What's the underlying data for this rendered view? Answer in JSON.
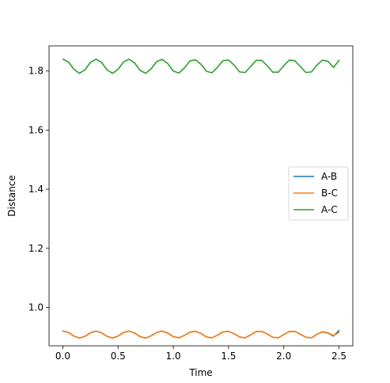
{
  "chart_data": {
    "type": "line",
    "title": "",
    "xlabel": "Time",
    "ylabel": "Distance",
    "xlim": [
      -0.125,
      2.625
    ],
    "ylim": [
      0.87,
      1.885
    ],
    "xticks": [
      0.0,
      0.5,
      1.0,
      1.5,
      2.0,
      2.5
    ],
    "xtick_labels": [
      "0.0",
      "0.5",
      "1.0",
      "1.5",
      "2.0",
      "2.5"
    ],
    "yticks": [
      1.0,
      1.2,
      1.4,
      1.6,
      1.8
    ],
    "ytick_labels": [
      "1.0",
      "1.2",
      "1.4",
      "1.6",
      "1.8"
    ],
    "grid": false,
    "legend_position": "center-right",
    "series": [
      {
        "name": "A-B",
        "color": "#1f77b4",
        "x": [
          0.0,
          0.05,
          0.1,
          0.15,
          0.2,
          0.25,
          0.3,
          0.35,
          0.4,
          0.45,
          0.5,
          0.55,
          0.6,
          0.65,
          0.7,
          0.75,
          0.8,
          0.85,
          0.9,
          0.95,
          1.0,
          1.05,
          1.1,
          1.15,
          1.2,
          1.25,
          1.3,
          1.35,
          1.4,
          1.45,
          1.5,
          1.55,
          1.6,
          1.65,
          1.7,
          1.75,
          1.8,
          1.85,
          1.9,
          1.95,
          2.0,
          2.05,
          2.1,
          2.15,
          2.2,
          2.25,
          2.3,
          2.35,
          2.4,
          2.45,
          2.5
        ],
        "y": [
          0.92,
          0.915,
          0.903,
          0.896,
          0.902,
          0.914,
          0.92,
          0.914,
          0.902,
          0.896,
          0.903,
          0.915,
          0.92,
          0.913,
          0.901,
          0.896,
          0.904,
          0.915,
          0.92,
          0.913,
          0.901,
          0.897,
          0.905,
          0.916,
          0.919,
          0.912,
          0.9,
          0.897,
          0.906,
          0.917,
          0.919,
          0.911,
          0.9,
          0.897,
          0.907,
          0.918,
          0.919,
          0.91,
          0.899,
          0.897,
          0.908,
          0.918,
          0.919,
          0.909,
          0.899,
          0.897,
          0.909,
          0.917,
          0.913,
          0.903,
          0.922
        ]
      },
      {
        "name": "B-C",
        "color": "#ff7f0e",
        "x": [
          0.0,
          0.05,
          0.1,
          0.15,
          0.2,
          0.25,
          0.3,
          0.35,
          0.4,
          0.45,
          0.5,
          0.55,
          0.6,
          0.65,
          0.7,
          0.75,
          0.8,
          0.85,
          0.9,
          0.95,
          1.0,
          1.05,
          1.1,
          1.15,
          1.2,
          1.25,
          1.3,
          1.35,
          1.4,
          1.45,
          1.5,
          1.55,
          1.6,
          1.65,
          1.7,
          1.75,
          1.8,
          1.85,
          1.9,
          1.95,
          2.0,
          2.05,
          2.1,
          2.15,
          2.2,
          2.25,
          2.3,
          2.35,
          2.4,
          2.45,
          2.5
        ],
        "y": [
          0.92,
          0.915,
          0.903,
          0.896,
          0.902,
          0.914,
          0.92,
          0.914,
          0.902,
          0.896,
          0.903,
          0.915,
          0.92,
          0.913,
          0.901,
          0.896,
          0.904,
          0.915,
          0.92,
          0.913,
          0.901,
          0.897,
          0.905,
          0.916,
          0.919,
          0.912,
          0.9,
          0.897,
          0.906,
          0.917,
          0.919,
          0.911,
          0.9,
          0.897,
          0.907,
          0.918,
          0.919,
          0.91,
          0.899,
          0.897,
          0.908,
          0.918,
          0.919,
          0.909,
          0.899,
          0.897,
          0.909,
          0.918,
          0.914,
          0.905,
          0.915
        ]
      },
      {
        "name": "A-C",
        "color": "#2ca02c",
        "x": [
          0.0,
          0.05,
          0.1,
          0.15,
          0.2,
          0.25,
          0.3,
          0.35,
          0.4,
          0.45,
          0.5,
          0.55,
          0.6,
          0.65,
          0.7,
          0.75,
          0.8,
          0.85,
          0.9,
          0.95,
          1.0,
          1.05,
          1.1,
          1.15,
          1.2,
          1.25,
          1.3,
          1.35,
          1.4,
          1.45,
          1.5,
          1.55,
          1.6,
          1.65,
          1.7,
          1.75,
          1.8,
          1.85,
          1.9,
          1.95,
          2.0,
          2.05,
          2.1,
          2.15,
          2.2,
          2.25,
          2.3,
          2.35,
          2.4,
          2.45,
          2.5
        ],
        "y": [
          1.84,
          1.831,
          1.806,
          1.792,
          1.804,
          1.829,
          1.84,
          1.829,
          1.804,
          1.792,
          1.806,
          1.831,
          1.84,
          1.827,
          1.802,
          1.792,
          1.808,
          1.832,
          1.839,
          1.825,
          1.8,
          1.793,
          1.81,
          1.834,
          1.838,
          1.823,
          1.799,
          1.794,
          1.813,
          1.835,
          1.837,
          1.82,
          1.797,
          1.795,
          1.815,
          1.836,
          1.836,
          1.818,
          1.796,
          1.796,
          1.818,
          1.837,
          1.835,
          1.815,
          1.795,
          1.797,
          1.82,
          1.837,
          1.833,
          1.812,
          1.836
        ]
      }
    ]
  }
}
